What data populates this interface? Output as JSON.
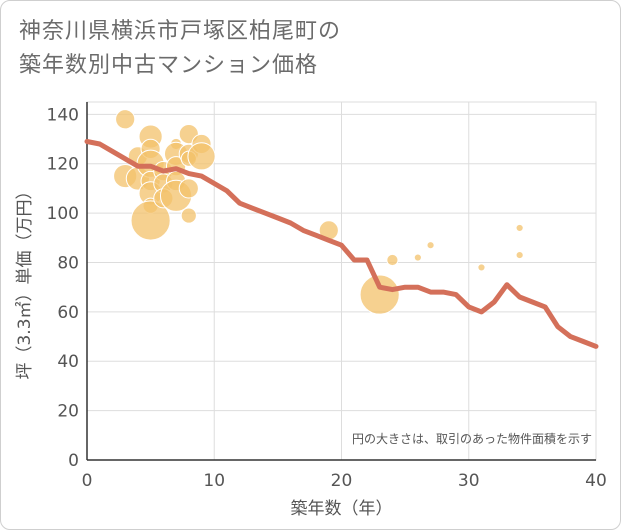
{
  "page": {
    "title_line1": "神奈川県横浜市戸塚区柏尾町の",
    "title_line2": "築年数別中古マンション価格"
  },
  "chart_data": {
    "type": "scatter",
    "title": "神奈川県横浜市戸塚区柏尾町の築年数別中古マンション価格",
    "xlabel": "築年数（年）",
    "ylabel": "坪（3.3㎡）単価（万円）",
    "xlim": [
      0,
      40
    ],
    "ylim": [
      0,
      145
    ],
    "x_ticks": [
      0,
      10,
      20,
      30,
      40
    ],
    "y_ticks": [
      0,
      20,
      40,
      60,
      80,
      100,
      120,
      140
    ],
    "grid": true,
    "note": "円の大きさは、取引のあった物件面積を示す",
    "colors": {
      "bubble": "#f3c26b",
      "line": "#d4705a",
      "grid": "#dddddd"
    },
    "bubbles": [
      {
        "x": 3,
        "y": 138,
        "s": 4
      },
      {
        "x": 3,
        "y": 115,
        "s": 5
      },
      {
        "x": 4,
        "y": 123,
        "s": 4
      },
      {
        "x": 4,
        "y": 114,
        "s": 5
      },
      {
        "x": 5,
        "y": 131,
        "s": 5
      },
      {
        "x": 5,
        "y": 126,
        "s": 4
      },
      {
        "x": 5,
        "y": 120,
        "s": 6
      },
      {
        "x": 5,
        "y": 113,
        "s": 4
      },
      {
        "x": 5,
        "y": 108,
        "s": 5
      },
      {
        "x": 5,
        "y": 103,
        "s": 3
      },
      {
        "x": 5,
        "y": 97,
        "s": 9
      },
      {
        "x": 6,
        "y": 117,
        "s": 4
      },
      {
        "x": 6,
        "y": 112,
        "s": 4
      },
      {
        "x": 6,
        "y": 106,
        "s": 4
      },
      {
        "x": 7,
        "y": 128,
        "s": 2
      },
      {
        "x": 7,
        "y": 124,
        "s": 5
      },
      {
        "x": 7,
        "y": 119,
        "s": 4
      },
      {
        "x": 7,
        "y": 113,
        "s": 4
      },
      {
        "x": 7,
        "y": 107,
        "s": 7
      },
      {
        "x": 8,
        "y": 132,
        "s": 4
      },
      {
        "x": 8,
        "y": 124,
        "s": 4
      },
      {
        "x": 8,
        "y": 122,
        "s": 3
      },
      {
        "x": 8,
        "y": 110,
        "s": 4
      },
      {
        "x": 8,
        "y": 99,
        "s": 3
      },
      {
        "x": 9,
        "y": 128,
        "s": 4
      },
      {
        "x": 9,
        "y": 123,
        "s": 6
      },
      {
        "x": 19,
        "y": 93,
        "s": 4
      },
      {
        "x": 23,
        "y": 67,
        "s": 9
      },
      {
        "x": 24,
        "y": 81,
        "s": 2
      },
      {
        "x": 26,
        "y": 82,
        "s": 1
      },
      {
        "x": 27,
        "y": 87,
        "s": 1
      },
      {
        "x": 31,
        "y": 78,
        "s": 1
      },
      {
        "x": 34,
        "y": 94,
        "s": 1
      },
      {
        "x": 34,
        "y": 83,
        "s": 1
      }
    ],
    "series": [
      {
        "values": [
          [
            0,
            129
          ],
          [
            1,
            128
          ],
          [
            2,
            125
          ],
          [
            3,
            122
          ],
          [
            4,
            119
          ],
          [
            5,
            119
          ],
          [
            6,
            117
          ],
          [
            7,
            118
          ],
          [
            8,
            116
          ],
          [
            9,
            115
          ],
          [
            10,
            112
          ],
          [
            11,
            109
          ],
          [
            12,
            104
          ],
          [
            13,
            102
          ],
          [
            14,
            100
          ],
          [
            15,
            98
          ],
          [
            16,
            96
          ],
          [
            17,
            93
          ],
          [
            18,
            91
          ],
          [
            19,
            89
          ],
          [
            20,
            87
          ],
          [
            21,
            81
          ],
          [
            22,
            81
          ],
          [
            23,
            70
          ],
          [
            24,
            69
          ],
          [
            25,
            70
          ],
          [
            26,
            70
          ],
          [
            27,
            68
          ],
          [
            28,
            68
          ],
          [
            29,
            67
          ],
          [
            30,
            62
          ],
          [
            31,
            60
          ],
          [
            32,
            64
          ],
          [
            33,
            71
          ],
          [
            34,
            66
          ],
          [
            35,
            64
          ],
          [
            36,
            62
          ],
          [
            37,
            54
          ],
          [
            38,
            50
          ],
          [
            39,
            48
          ],
          [
            40,
            46
          ]
        ]
      }
    ]
  }
}
